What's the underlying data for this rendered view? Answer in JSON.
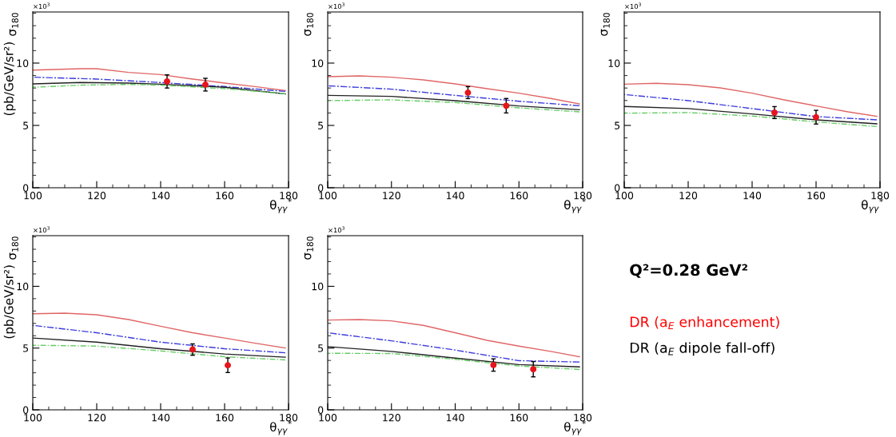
{
  "chart_data": [
    {
      "type": "line",
      "xlabel": "θ$_{γγ}$$^{*}$",
      "ylabel": "σ$_{180}$",
      "annotations": [
        "×10$^{3}$",
        "(pb/GeV/sr²)"
      ],
      "xlim": [
        100,
        180
      ],
      "ylim": [
        0,
        14.1
      ],
      "xticks": [
        100,
        120,
        140,
        160,
        180
      ],
      "yticks": [
        0,
        5,
        10
      ],
      "grid": false,
      "series": [
        {
          "color": "#e06666",
          "line_style": "solid",
          "x": [
            100,
            115,
            120,
            130,
            140,
            150,
            160,
            170,
            179
          ],
          "values": [
            9.44,
            9.55,
            9.55,
            9.25,
            9.08,
            8.72,
            8.4,
            8.1,
            7.8
          ]
        },
        {
          "color": "#3c3cdc",
          "line_style": "dashdot",
          "x": [
            100,
            120,
            140,
            160,
            179
          ],
          "values": [
            8.87,
            8.72,
            8.44,
            8.12,
            7.73
          ]
        },
        {
          "color": "#222222",
          "line_style": "solid",
          "x": [
            100,
            115,
            130,
            140,
            160,
            179
          ],
          "values": [
            8.33,
            8.44,
            8.4,
            8.31,
            8.06,
            7.52
          ]
        },
        {
          "color": "#66cc66",
          "line_style": "dashed",
          "x": [
            100,
            115,
            130,
            140,
            160,
            179
          ],
          "values": [
            8.06,
            8.23,
            8.29,
            8.23,
            7.95,
            7.54
          ]
        },
        {
          "type": "scatter",
          "color": "#e8141c",
          "marker": "circle",
          "x": [
            142,
            154
          ],
          "values": [
            8.53,
            8.27
          ],
          "errors": [
            0.53,
            0.51
          ]
        }
      ]
    },
    {
      "type": "line",
      "xlabel": "θ$_{γγ}$$^{*}$",
      "ylabel": "σ$_{180}$",
      "annotations": [
        "×10$^{3}$"
      ],
      "xlim": [
        100,
        180
      ],
      "ylim": [
        0,
        14.1
      ],
      "xticks": [
        100,
        120,
        140,
        160,
        180
      ],
      "yticks": [
        0,
        5,
        10
      ],
      "grid": false,
      "series": [
        {
          "color": "#e06666",
          "line_style": "solid",
          "x": [
            100,
            110,
            120,
            130,
            140,
            150,
            160,
            170,
            179
          ],
          "values": [
            8.91,
            8.97,
            8.87,
            8.65,
            8.33,
            7.95,
            7.59,
            7.16,
            6.73
          ]
        },
        {
          "color": "#3c3cdc",
          "line_style": "dashdot",
          "x": [
            100,
            120,
            140,
            160,
            179
          ],
          "values": [
            8.18,
            7.91,
            7.41,
            6.94,
            6.58
          ]
        },
        {
          "color": "#222222",
          "line_style": "solid",
          "x": [
            100,
            120,
            140,
            160,
            179
          ],
          "values": [
            7.41,
            7.33,
            6.99,
            6.56,
            6.26
          ]
        },
        {
          "color": "#66cc66",
          "line_style": "dashed",
          "x": [
            100,
            120,
            140,
            160,
            179
          ],
          "values": [
            6.99,
            7.05,
            6.84,
            6.41,
            6.09
          ]
        },
        {
          "type": "scatter",
          "color": "#e8141c",
          "marker": "circle",
          "x": [
            144,
            156
          ],
          "values": [
            7.63,
            6.58
          ],
          "errors": [
            0.48,
            0.58
          ]
        }
      ]
    },
    {
      "type": "line",
      "xlabel": "θ$_{γγ}$$^{*}$",
      "ylabel": "σ$_{180}$",
      "annotations": [
        "×10$^{3}$"
      ],
      "xlim": [
        100,
        180
      ],
      "ylim": [
        0,
        14.1
      ],
      "xticks": [
        100,
        120,
        140,
        160,
        180
      ],
      "yticks": [
        0,
        5,
        10
      ],
      "grid": false,
      "series": [
        {
          "color": "#e06666",
          "line_style": "solid",
          "x": [
            100,
            110,
            120,
            130,
            140,
            150,
            160,
            170,
            179
          ],
          "values": [
            8.31,
            8.38,
            8.27,
            8.01,
            7.59,
            7.05,
            6.56,
            6.09,
            5.73
          ]
        },
        {
          "color": "#3c3cdc",
          "line_style": "dashdot",
          "x": [
            100,
            120,
            140,
            160,
            179
          ],
          "values": [
            7.48,
            6.99,
            6.35,
            5.71,
            5.45
          ]
        },
        {
          "color": "#222222",
          "line_style": "solid",
          "x": [
            100,
            120,
            140,
            160,
            179
          ],
          "values": [
            6.52,
            6.35,
            5.92,
            5.45,
            5.13
          ]
        },
        {
          "color": "#66cc66",
          "line_style": "dashed",
          "x": [
            100,
            120,
            140,
            160,
            179
          ],
          "values": [
            5.98,
            6.03,
            5.75,
            5.28,
            4.91
          ]
        },
        {
          "type": "scatter",
          "color": "#e8141c",
          "marker": "circle",
          "x": [
            147,
            160
          ],
          "values": [
            6.03,
            5.66
          ],
          "errors": [
            0.48,
            0.55
          ]
        }
      ]
    },
    {
      "type": "line",
      "xlabel": "θ$_{γγ}$$^{*}$",
      "ylabel": "σ$_{180}$",
      "annotations": [
        "×10$^{3}$",
        "(pb/GeV/sr²)"
      ],
      "xlim": [
        100,
        180
      ],
      "ylim": [
        0,
        14.1
      ],
      "xticks": [
        100,
        120,
        140,
        160,
        180
      ],
      "yticks": [
        0,
        5,
        10
      ],
      "grid": false,
      "series": [
        {
          "color": "#e06666",
          "line_style": "solid",
          "x": [
            100,
            110,
            120,
            130,
            140,
            150,
            160,
            170,
            179
          ],
          "values": [
            7.78,
            7.83,
            7.7,
            7.31,
            6.77,
            6.24,
            5.81,
            5.38,
            5.01
          ]
        },
        {
          "color": "#3c3cdc",
          "line_style": "dashdot",
          "x": [
            100,
            120,
            140,
            160,
            179
          ],
          "values": [
            6.84,
            6.24,
            5.48,
            4.95,
            4.62
          ]
        },
        {
          "color": "#222222",
          "line_style": "solid",
          "x": [
            100,
            120,
            140,
            160,
            179
          ],
          "values": [
            5.81,
            5.48,
            4.95,
            4.52,
            4.26
          ]
        },
        {
          "color": "#66cc66",
          "line_style": "dashed",
          "x": [
            100,
            120,
            140,
            160,
            179
          ],
          "values": [
            5.23,
            5.16,
            4.77,
            4.3,
            4.04
          ]
        },
        {
          "type": "scatter",
          "color": "#e8141c",
          "marker": "circle",
          "x": [
            150,
            161
          ],
          "values": [
            4.88,
            3.61
          ],
          "errors": [
            0.46,
            0.59
          ]
        }
      ]
    },
    {
      "type": "line",
      "xlabel": "θ$_{γγ}$$^{*}$",
      "ylabel": "σ$_{180}$",
      "annotations": [
        "×10$^{3}$"
      ],
      "xlim": [
        100,
        180
      ],
      "ylim": [
        0,
        14.1
      ],
      "xticks": [
        100,
        120,
        140,
        160,
        180
      ],
      "yticks": [
        0,
        5,
        10
      ],
      "grid": false,
      "series": [
        {
          "color": "#e06666",
          "line_style": "solid",
          "x": [
            100,
            110,
            120,
            130,
            140,
            150,
            160,
            170,
            179
          ],
          "values": [
            7.27,
            7.31,
            7.2,
            6.84,
            6.24,
            5.63,
            5.16,
            4.73,
            4.3
          ]
        },
        {
          "color": "#3c3cdc",
          "line_style": "dashdot",
          "x": [
            100,
            120,
            140,
            160,
            179
          ],
          "values": [
            6.24,
            5.59,
            4.84,
            3.98,
            3.87
          ]
        },
        {
          "color": "#222222",
          "line_style": "solid",
          "x": [
            100,
            120,
            140,
            160,
            179
          ],
          "values": [
            5.12,
            4.73,
            4.19,
            3.66,
            3.48
          ]
        },
        {
          "color": "#66cc66",
          "line_style": "dashed",
          "x": [
            100,
            120,
            140,
            160,
            179
          ],
          "values": [
            4.58,
            4.56,
            4.09,
            3.55,
            3.27
          ]
        },
        {
          "type": "scatter",
          "color": "#e8141c",
          "marker": "circle",
          "x": [
            152,
            164.5
          ],
          "values": [
            3.63,
            3.29
          ],
          "errors": [
            0.5,
            0.62
          ]
        }
      ]
    },
    {
      "type": "other",
      "title": "Q²=0.28 GeV²",
      "series": [
        {
          "name": "DR (a$_{E}$ enhancement)",
          "color": "#ff0000"
        },
        {
          "name": "DR (a$_{E}$ dipole fall-off)",
          "color": "#000000"
        }
      ]
    }
  ]
}
